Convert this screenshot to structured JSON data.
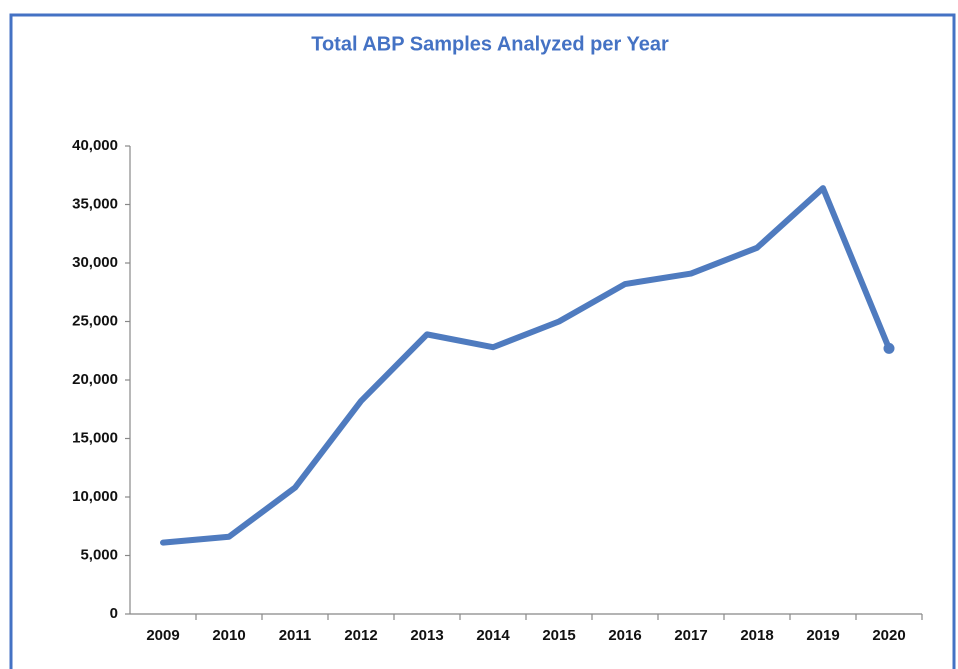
{
  "chart_data": {
    "type": "line",
    "title": "Total ABP Samples Analyzed per Year",
    "categories": [
      "2009",
      "2010",
      "2011",
      "2012",
      "2013",
      "2014",
      "2015",
      "2016",
      "2017",
      "2018",
      "2019",
      "2020"
    ],
    "values": [
      6100,
      6600,
      10800,
      18200,
      23900,
      22800,
      25000,
      28200,
      29100,
      31300,
      36400,
      22700
    ],
    "color": "#4f7bbf",
    "ylim": [
      0,
      40000
    ],
    "yticks": [
      0,
      {
        "value": 5000,
        "label": "5,000"
      },
      {
        "value": 10000,
        "label": "10,000"
      },
      {
        "value": 15000,
        "label": "15,000"
      },
      {
        "value": 20000,
        "label": "20,000"
      },
      {
        "value": 25000,
        "label": "25,000"
      },
      {
        "value": 30000,
        "label": "30,000"
      },
      {
        "value": 35000,
        "label": "35,000"
      },
      {
        "value": 40000,
        "label": "40,000"
      }
    ],
    "grid": false
  }
}
